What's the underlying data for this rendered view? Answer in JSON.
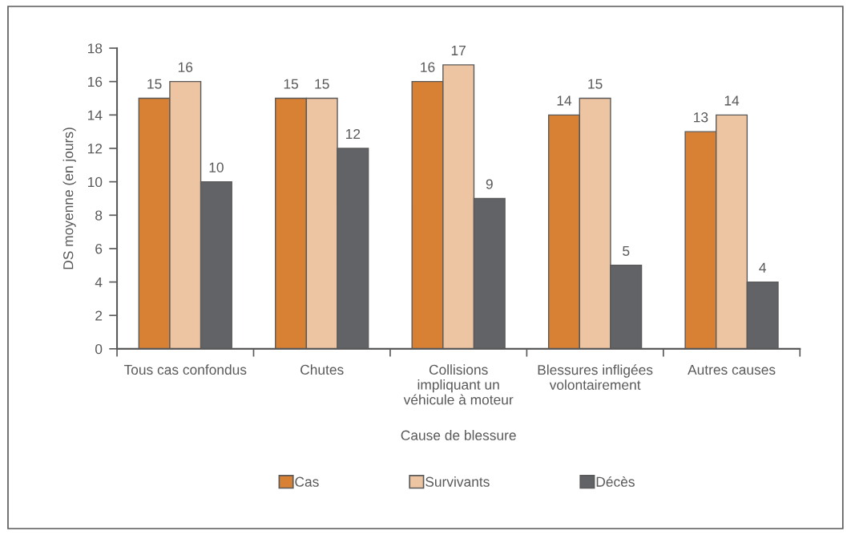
{
  "chart_data": {
    "type": "bar",
    "xlabel": "Cause de blessure",
    "ylabel": "DS moyenne (en jours)",
    "categories": [
      "Tous cas confondus",
      "Chutes",
      "Collisions\nimpliquant un\nvéhicule à moteur",
      "Blessures infligées\nvolontairement",
      "Autres causes"
    ],
    "series": [
      {
        "name": "Cas",
        "color": "#d88134",
        "values": [
          15,
          15,
          16,
          14,
          13
        ]
      },
      {
        "name": "Survivants",
        "color": "#eec5a2",
        "values": [
          16,
          15,
          17,
          15,
          14
        ]
      },
      {
        "name": "Décès",
        "color": "#626366",
        "values": [
          10,
          12,
          9,
          5,
          4
        ]
      }
    ],
    "ylim": [
      0,
      18
    ],
    "yticks": [
      0,
      2,
      4,
      6,
      8,
      10,
      12,
      14,
      16,
      18
    ],
    "data_labels": true,
    "legend": "bottom",
    "grid": false
  }
}
